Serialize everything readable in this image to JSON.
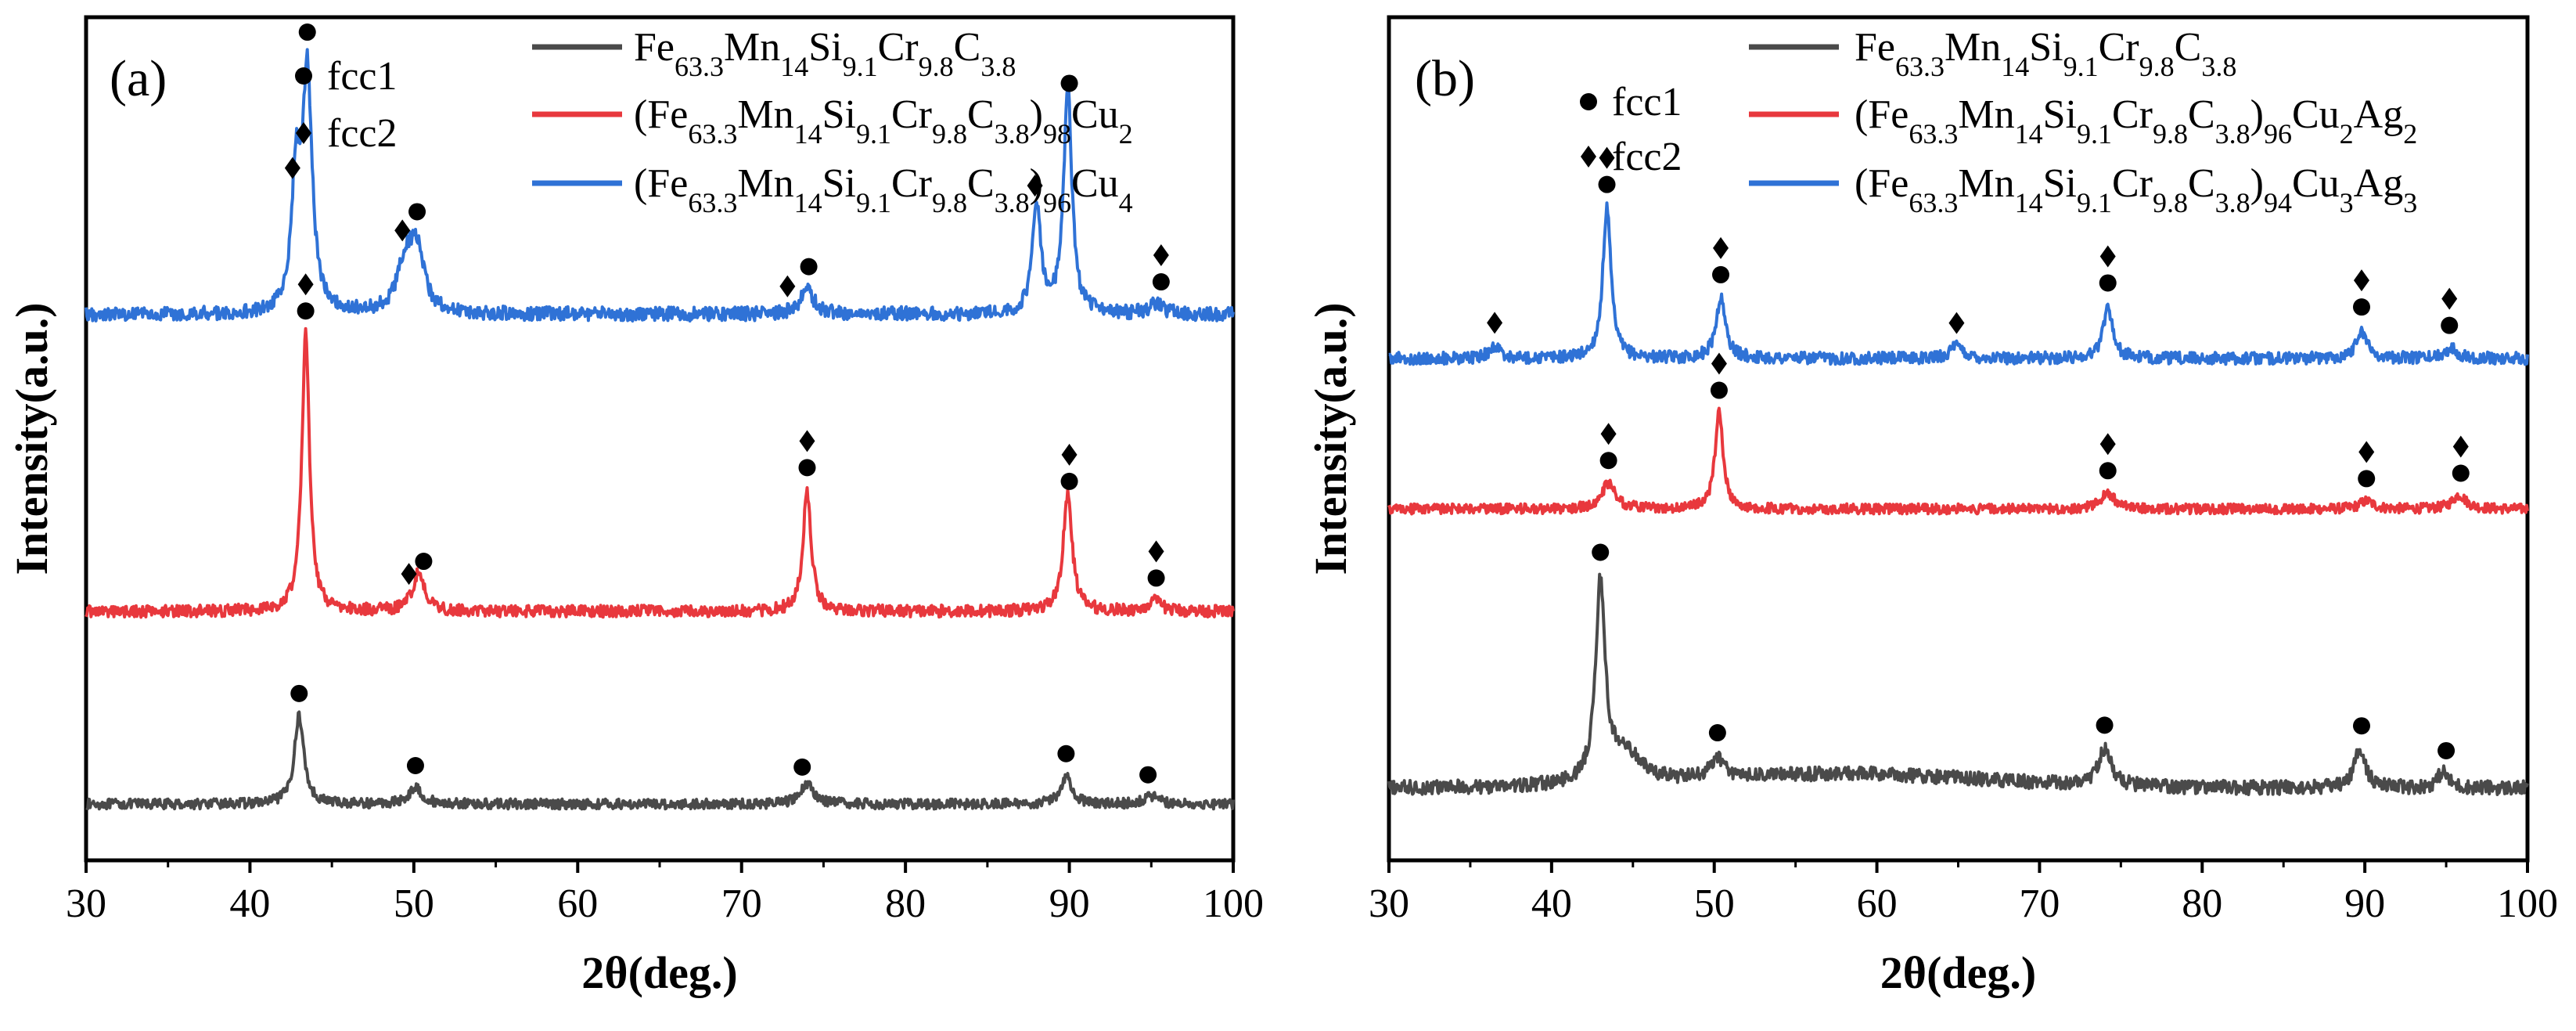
{
  "figure": {
    "background": "#ffffff",
    "marker_legend": {
      "fcc1": "fcc1",
      "fcc2": "fcc2"
    }
  },
  "chart_data": [
    {
      "type": "line",
      "panel_label": "(a)",
      "xlabel": "2θ(deg.)",
      "ylabel": "Intensity(a.u.)",
      "xlim": [
        30,
        100
      ],
      "xticks": [
        "30",
        "40",
        "50",
        "60",
        "70",
        "80",
        "90",
        "100"
      ],
      "y_ticks_shown": false,
      "series": [
        {
          "name": "Fe63.3Mn14Si9.1Cr9.8C3.8",
          "legend_parts": [
            {
              "t": "Fe",
              "sub": false
            },
            {
              "t": "63.3",
              "sub": true
            },
            {
              "t": "Mn",
              "sub": false
            },
            {
              "t": "14",
              "sub": true
            },
            {
              "t": "Si",
              "sub": false
            },
            {
              "t": "9.1",
              "sub": true
            },
            {
              "t": "Cr",
              "sub": false
            },
            {
              "t": "9.8",
              "sub": true
            },
            {
              "t": "C",
              "sub": false
            },
            {
              "t": "3.8",
              "sub": true
            }
          ],
          "color": "#4a4a4a",
          "baseline": 0.8,
          "noise": 0.25,
          "peaks": [
            {
              "x": 43.0,
              "h": 4.4,
              "w": 0.35
            },
            {
              "x": 50.1,
              "h": 0.8,
              "w": 0.5
            },
            {
              "x": 74.0,
              "h": 1.0,
              "w": 0.5
            },
            {
              "x": 89.8,
              "h": 1.4,
              "w": 0.4
            },
            {
              "x": 95.0,
              "h": 0.4,
              "w": 0.5
            }
          ],
          "markers": [
            {
              "x": 43.0,
              "labels": [
                "fcc1"
              ]
            },
            {
              "x": 50.1,
              "labels": [
                "fcc1"
              ]
            },
            {
              "x": 73.7,
              "labels": [
                "fcc1"
              ]
            },
            {
              "x": 89.8,
              "labels": [
                "fcc1"
              ]
            },
            {
              "x": 94.8,
              "labels": [
                "fcc1"
              ]
            }
          ]
        },
        {
          "name": "(Fe63.3Mn14Si9.1Cr9.8C3.8)98Cu2",
          "legend_parts": [
            {
              "t": "(Fe",
              "sub": false
            },
            {
              "t": "63.3",
              "sub": true
            },
            {
              "t": "Mn",
              "sub": false
            },
            {
              "t": "14",
              "sub": true
            },
            {
              "t": "Si",
              "sub": false
            },
            {
              "t": "9.1",
              "sub": true
            },
            {
              "t": "Cr",
              "sub": false
            },
            {
              "t": "9.8",
              "sub": true
            },
            {
              "t": "C",
              "sub": false
            },
            {
              "t": "3.8",
              "sub": true
            },
            {
              "t": ")",
              "sub": false
            },
            {
              "t": "98",
              "sub": true
            },
            {
              "t": "Cu",
              "sub": false
            },
            {
              "t": "2",
              "sub": true
            }
          ],
          "color": "#e8383d",
          "baseline": 10.4,
          "noise": 0.3,
          "peaks": [
            {
              "x": 43.4,
              "h": 13.8,
              "w": 0.28
            },
            {
              "x": 50.3,
              "h": 1.9,
              "w": 0.45
            },
            {
              "x": 74.0,
              "h": 6.0,
              "w": 0.3
            },
            {
              "x": 89.9,
              "h": 5.8,
              "w": 0.33
            },
            {
              "x": 95.2,
              "h": 0.5,
              "w": 0.5
            }
          ],
          "markers": [
            {
              "x": 43.4,
              "labels": [
                "fcc1",
                "fcc2"
              ]
            },
            {
              "x": 49.7,
              "labels": [
                "fcc2"
              ]
            },
            {
              "x": 50.6,
              "labels": [
                "fcc1"
              ]
            },
            {
              "x": 74.0,
              "labels": [
                "fcc1",
                "fcc2"
              ]
            },
            {
              "x": 90.0,
              "labels": [
                "fcc1",
                "fcc2"
              ]
            },
            {
              "x": 95.3,
              "labels": [
                "fcc1",
                "fcc2"
              ]
            }
          ]
        },
        {
          "name": "(Fe63.3Mn14Si9.1Cr9.8C3.8)96Cu4",
          "legend_parts": [
            {
              "t": "(Fe",
              "sub": false
            },
            {
              "t": "63.3",
              "sub": true
            },
            {
              "t": "Mn",
              "sub": false
            },
            {
              "t": "14",
              "sub": true
            },
            {
              "t": "Si",
              "sub": false
            },
            {
              "t": "9.1",
              "sub": true
            },
            {
              "t": "Cr",
              "sub": false
            },
            {
              "t": "9.8",
              "sub": true
            },
            {
              "t": "C",
              "sub": false
            },
            {
              "t": "3.8",
              "sub": true
            },
            {
              "t": ")",
              "sub": false
            },
            {
              "t": "96",
              "sub": true
            },
            {
              "t": "Cu",
              "sub": false
            },
            {
              "t": "4",
              "sub": true
            }
          ],
          "color": "#2f72d6",
          "baseline": 25.2,
          "noise": 0.35,
          "peaks": [
            {
              "x": 42.8,
              "h": 6.5,
              "w": 0.3
            },
            {
              "x": 43.5,
              "h": 11.8,
              "w": 0.35
            },
            {
              "x": 49.5,
              "h": 2.5,
              "w": 0.6
            },
            {
              "x": 50.2,
              "h": 2.8,
              "w": 0.5
            },
            {
              "x": 74.0,
              "h": 1.2,
              "w": 0.5
            },
            {
              "x": 88.0,
              "h": 5.5,
              "w": 0.3
            },
            {
              "x": 89.9,
              "h": 11.3,
              "w": 0.3
            },
            {
              "x": 95.3,
              "h": 0.5,
              "w": 0.5
            }
          ],
          "markers": [
            {
              "x": 42.6,
              "labels": [
                "fcc2"
              ]
            },
            {
              "x": 43.5,
              "labels": [
                "fcc1"
              ]
            },
            {
              "x": 49.3,
              "labels": [
                "fcc2"
              ]
            },
            {
              "x": 50.2,
              "labels": [
                "fcc1"
              ]
            },
            {
              "x": 72.8,
              "labels": [
                "fcc2"
              ]
            },
            {
              "x": 74.1,
              "labels": [
                "fcc1"
              ]
            },
            {
              "x": 87.9,
              "labels": [
                "fcc2"
              ]
            },
            {
              "x": 90.0,
              "labels": [
                "fcc1"
              ]
            },
            {
              "x": 95.6,
              "labels": [
                "fcc1",
                "fcc2"
              ]
            }
          ]
        }
      ]
    },
    {
      "type": "line",
      "panel_label": "(b)",
      "xlabel": "2θ(deg.)",
      "ylabel": "Intensity(a.u.)",
      "xlim": [
        30,
        100
      ],
      "xticks": [
        "30",
        "40",
        "50",
        "60",
        "70",
        "80",
        "90",
        "100"
      ],
      "y_ticks_shown": false,
      "series": [
        {
          "name": "Fe63.3Mn14Si9.1Cr9.8C3.8",
          "legend_parts": [
            {
              "t": "Fe",
              "sub": false
            },
            {
              "t": "63.3",
              "sub": true
            },
            {
              "t": "Mn",
              "sub": false
            },
            {
              "t": "14",
              "sub": true
            },
            {
              "t": "Si",
              "sub": false
            },
            {
              "t": "9.1",
              "sub": true
            },
            {
              "t": "Cr",
              "sub": false
            },
            {
              "t": "9.8",
              "sub": true
            },
            {
              "t": "C",
              "sub": false
            },
            {
              "t": "3.8",
              "sub": true
            }
          ],
          "color": "#4a4a4a",
          "baseline": 1.6,
          "noise": 0.35,
          "hump": {
            "x": 58,
            "h": 0.7,
            "w": 12
          },
          "peaks": [
            {
              "x": 43.0,
              "h": 9.8,
              "w": 0.35
            },
            {
              "x": 44.5,
              "h": 1.5,
              "w": 1.2
            },
            {
              "x": 50.2,
              "h": 1.0,
              "w": 0.5
            },
            {
              "x": 74.0,
              "h": 1.8,
              "w": 0.5
            },
            {
              "x": 89.7,
              "h": 2.0,
              "w": 0.4
            },
            {
              "x": 94.8,
              "h": 0.8,
              "w": 0.4
            }
          ],
          "markers": [
            {
              "x": 43.0,
              "labels": [
                "fcc1"
              ]
            },
            {
              "x": 50.2,
              "labels": [
                "fcc1"
              ]
            },
            {
              "x": 74.0,
              "labels": [
                "fcc1"
              ]
            },
            {
              "x": 89.8,
              "labels": [
                "fcc1"
              ]
            },
            {
              "x": 95.0,
              "labels": [
                "fcc1"
              ]
            }
          ]
        },
        {
          "name": "(Fe63.3Mn14Si9.1Cr9.8C3.8)96Cu2Ag2",
          "legend_parts": [
            {
              "t": "(Fe",
              "sub": false
            },
            {
              "t": "63.3",
              "sub": true
            },
            {
              "t": "Mn",
              "sub": false
            },
            {
              "t": "14",
              "sub": true
            },
            {
              "t": "Si",
              "sub": false
            },
            {
              "t": "9.1",
              "sub": true
            },
            {
              "t": "Cr",
              "sub": false
            },
            {
              "t": "9.8",
              "sub": true
            },
            {
              "t": "C",
              "sub": false
            },
            {
              "t": "3.8",
              "sub": true
            },
            {
              "t": ")",
              "sub": false
            },
            {
              "t": "96",
              "sub": true
            },
            {
              "t": "Cu",
              "sub": false
            },
            {
              "t": "2",
              "sub": true
            },
            {
              "t": "Ag",
              "sub": false
            },
            {
              "t": "2",
              "sub": true
            }
          ],
          "color": "#e8383d",
          "baseline": 15.5,
          "noise": 0.25,
          "peaks": [
            {
              "x": 43.5,
              "h": 1.3,
              "w": 0.5
            },
            {
              "x": 50.3,
              "h": 4.8,
              "w": 0.3
            },
            {
              "x": 74.2,
              "h": 0.8,
              "w": 0.5
            },
            {
              "x": 90.1,
              "h": 0.4,
              "w": 0.5
            },
            {
              "x": 95.8,
              "h": 0.7,
              "w": 0.5
            }
          ],
          "markers": [
            {
              "x": 43.5,
              "labels": [
                "fcc1",
                "fcc2"
              ]
            },
            {
              "x": 50.3,
              "labels": [
                "fcc1",
                "fcc2"
              ]
            },
            {
              "x": 74.2,
              "labels": [
                "fcc1",
                "fcc2"
              ]
            },
            {
              "x": 90.1,
              "labels": [
                "fcc1",
                "fcc2"
              ]
            },
            {
              "x": 95.9,
              "labels": [
                "fcc1",
                "fcc2"
              ]
            }
          ]
        },
        {
          "name": "(Fe63.3Mn14Si9.1Cr9.8C3.8)94Cu3Ag3",
          "legend_parts": [
            {
              "t": "(Fe",
              "sub": false
            },
            {
              "t": "63.3",
              "sub": true
            },
            {
              "t": "Mn",
              "sub": false
            },
            {
              "t": "14",
              "sub": true
            },
            {
              "t": "Si",
              "sub": false
            },
            {
              "t": "9.1",
              "sub": true
            },
            {
              "t": "Cr",
              "sub": false
            },
            {
              "t": "9.8",
              "sub": true
            },
            {
              "t": "C",
              "sub": false
            },
            {
              "t": "3.8",
              "sub": true
            },
            {
              "t": ")",
              "sub": false
            },
            {
              "t": "94",
              "sub": true
            },
            {
              "t": "Cu",
              "sub": false
            },
            {
              "t": "3",
              "sub": true
            },
            {
              "t": "Ag",
              "sub": false
            },
            {
              "t": "3",
              "sub": true
            }
          ],
          "color": "#2f72d6",
          "baseline": 23.0,
          "noise": 0.3,
          "peaks": [
            {
              "x": 36.5,
              "h": 0.6,
              "w": 0.4
            },
            {
              "x": 43.4,
              "h": 7.5,
              "w": 0.3
            },
            {
              "x": 50.4,
              "h": 3.0,
              "w": 0.35
            },
            {
              "x": 64.9,
              "h": 0.6,
              "w": 0.5
            },
            {
              "x": 74.2,
              "h": 2.6,
              "w": 0.35
            },
            {
              "x": 89.8,
              "h": 1.4,
              "w": 0.4
            },
            {
              "x": 95.3,
              "h": 0.5,
              "w": 0.5
            }
          ],
          "markers": [
            {
              "x": 36.5,
              "labels": [
                "fcc2"
              ]
            },
            {
              "x": 43.4,
              "labels": [
                "fcc1",
                "fcc2"
              ]
            },
            {
              "x": 50.4,
              "labels": [
                "fcc1",
                "fcc2"
              ]
            },
            {
              "x": 64.9,
              "labels": [
                "fcc2"
              ]
            },
            {
              "x": 74.2,
              "labels": [
                "fcc1",
                "fcc2"
              ]
            },
            {
              "x": 89.8,
              "labels": [
                "fcc1",
                "fcc2"
              ]
            },
            {
              "x": 95.2,
              "labels": [
                "fcc1",
                "fcc2"
              ]
            }
          ]
        }
      ]
    }
  ]
}
